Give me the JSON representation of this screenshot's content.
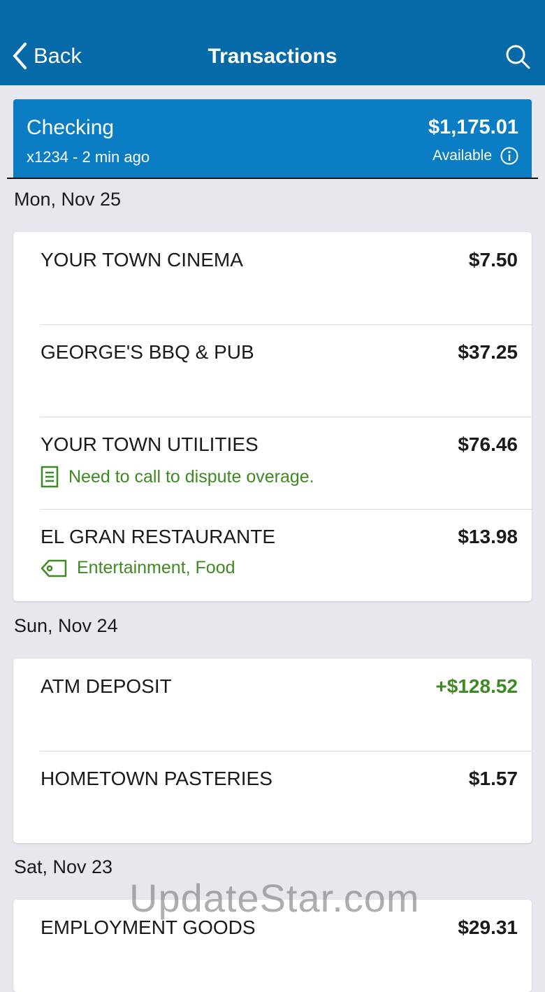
{
  "header": {
    "back_label": "Back",
    "title": "Transactions"
  },
  "account": {
    "name": "Checking",
    "subtitle": "x1234 - 2 min ago",
    "balance": "$1,175.01",
    "balance_label": "Available"
  },
  "colors": {
    "header": "#066aa9",
    "account_card": "#0a7dc4",
    "positive": "#3d8a22"
  },
  "groups": [
    {
      "date": "Mon, Nov 25",
      "transactions": [
        {
          "name": "YOUR TOWN CINEMA",
          "amount": "$7.50"
        },
        {
          "name": "GEORGE'S BBQ & PUB",
          "amount": "$37.25"
        },
        {
          "name": "YOUR TOWN UTILITIES",
          "amount": "$76.46",
          "note": "Need to call to dispute overage.",
          "note_icon": "note-icon"
        },
        {
          "name": "EL GRAN RESTAURANTE",
          "amount": "$13.98",
          "note": "Entertainment, Food",
          "note_icon": "tag-icon"
        }
      ]
    },
    {
      "date": "Sun, Nov 24",
      "transactions": [
        {
          "name": "ATM DEPOSIT",
          "amount": "+$128.52"
        },
        {
          "name": "HOMETOWN PASTERIES",
          "amount": "$1.57"
        }
      ]
    },
    {
      "date": "Sat, Nov 23",
      "transactions": [
        {
          "name": "EMPLOYMENT GOODS",
          "amount": "$29.31"
        }
      ]
    }
  ],
  "watermark": "UpdateStar.com"
}
